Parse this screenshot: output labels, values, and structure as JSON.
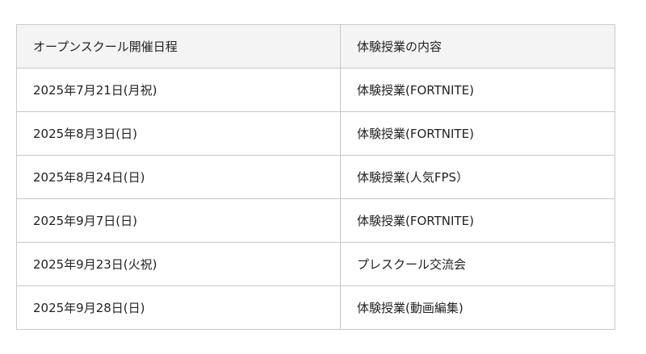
{
  "table": {
    "headers": [
      "オープンスクール開催日程",
      "体験授業の内容"
    ],
    "rows": [
      [
        "2025年7月21日(月祝)",
        "体験授業(FORTNITE)"
      ],
      [
        "2025年8月3日(日)",
        "体験授業(FORTNITE)"
      ],
      [
        "2025年8月24日(日)",
        "体験授業(人気FPS）"
      ],
      [
        "2025年9月7日(日)",
        "体験授業(FORTNITE)"
      ],
      [
        "2025年9月23日(火祝)",
        "プレスクール交流会"
      ],
      [
        "2025年9月28日(日)",
        "体験授業(動画編集)"
      ]
    ]
  }
}
